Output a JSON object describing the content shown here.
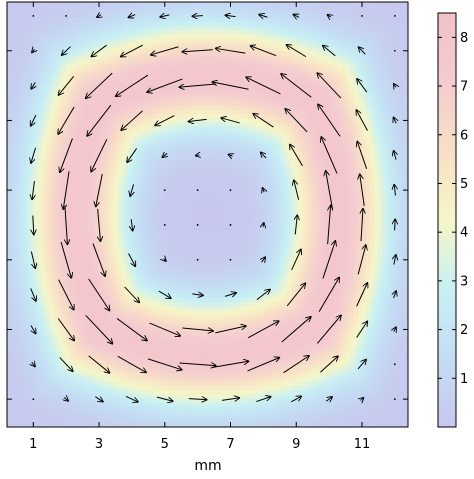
{
  "chart_data": {
    "type": "heatmap",
    "subtype": "vector-field-over-magnitude-heatmap",
    "xlabel": "mm",
    "ylabel": "",
    "title": "",
    "xlim": [
      0.2,
      12.4
    ],
    "ylim": [
      0.2,
      12.4
    ],
    "x_ticks": [
      1,
      3,
      5,
      7,
      9,
      11
    ],
    "y_ticks_unlabeled": [
      1,
      3,
      5,
      7,
      9,
      11
    ],
    "colorbar": {
      "range": [
        0,
        8.5
      ],
      "ticks": [
        1,
        2,
        3,
        4,
        5,
        6,
        7,
        8
      ],
      "colors": [
        "#c8c8ee",
        "#c4dcf4",
        "#c8f0f4",
        "#f6f6c8",
        "#f8e0c6",
        "#f4ccd0",
        "#f2c2c8"
      ]
    },
    "field": {
      "center": [
        6.3,
        6.3
      ],
      "ring_radius": 4.0,
      "ring_width": 1.5,
      "peak_magnitude": 7.8,
      "rotation": "counterclockwise",
      "grid_step": 1,
      "grid_min": 1,
      "grid_max": 12
    },
    "grid": false
  }
}
